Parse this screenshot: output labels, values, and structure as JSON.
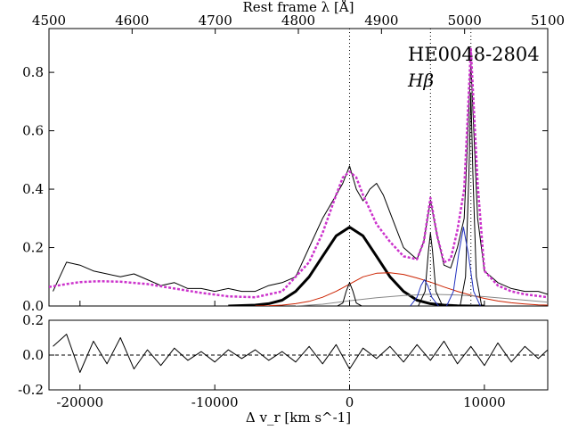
{
  "chart_data": [
    {
      "panel": "spectrum",
      "type": "line",
      "title_text": "HE0048-2804",
      "line_label": "Hβ",
      "top_axis_label": "Rest frame λ [Å]",
      "top_axis_ticks": [
        "4500",
        "4600",
        "4700",
        "4800",
        "4900",
        "5000",
        "5100"
      ],
      "x_range_kms": [
        -22300,
        14700
      ],
      "y_range": [
        0.0,
        0.95
      ],
      "y_ticks": [
        "0.0",
        "0.2",
        "0.4",
        "0.6",
        "0.8"
      ],
      "bottom_ticks_values": [
        -20000,
        -10000,
        0,
        10000
      ],
      "vertical_markers_kms": [
        0,
        6000,
        9000
      ],
      "series": [
        {
          "name": "observed spectrum",
          "color": "#000000",
          "x": [
            -22000,
            -21000,
            -20000,
            -19000,
            -18000,
            -17000,
            -16000,
            -15000,
            -14000,
            -13000,
            -12000,
            -11000,
            -10000,
            -9000,
            -8000,
            -7000,
            -6000,
            -5000,
            -4000,
            -3000,
            -2000,
            -1500,
            -1000,
            -500,
            0,
            500,
            1000,
            1500,
            2000,
            2500,
            3000,
            3500,
            4000,
            4500,
            5000,
            5500,
            6000,
            6500,
            7000,
            7500,
            8000,
            8500,
            9000,
            9500,
            10000,
            11000,
            12000,
            13000,
            14000,
            14700
          ],
          "y": [
            0.05,
            0.15,
            0.14,
            0.12,
            0.11,
            0.1,
            0.11,
            0.09,
            0.07,
            0.08,
            0.06,
            0.06,
            0.05,
            0.06,
            0.05,
            0.05,
            0.07,
            0.08,
            0.1,
            0.2,
            0.3,
            0.34,
            0.38,
            0.42,
            0.48,
            0.4,
            0.36,
            0.4,
            0.42,
            0.38,
            0.32,
            0.26,
            0.2,
            0.18,
            0.16,
            0.22,
            0.36,
            0.24,
            0.14,
            0.13,
            0.2,
            0.3,
            0.83,
            0.3,
            0.12,
            0.08,
            0.06,
            0.05,
            0.05,
            0.04
          ]
        },
        {
          "name": "total model",
          "color": "#cc33cc",
          "x": [
            -22300,
            -21000,
            -20000,
            -18500,
            -17000,
            -15000,
            -13000,
            -11000,
            -9000,
            -7000,
            -5000,
            -3000,
            -2000,
            -1000,
            -500,
            0,
            500,
            1000,
            2000,
            3000,
            4000,
            5000,
            5500,
            6000,
            6500,
            7000,
            7500,
            8000,
            8500,
            9000,
            9500,
            10000,
            11000,
            12000,
            13000,
            14700
          ],
          "y": [
            0.065,
            0.075,
            0.082,
            0.085,
            0.083,
            0.075,
            0.06,
            0.045,
            0.033,
            0.03,
            0.05,
            0.15,
            0.25,
            0.38,
            0.44,
            0.46,
            0.44,
            0.38,
            0.28,
            0.22,
            0.17,
            0.16,
            0.22,
            0.37,
            0.24,
            0.15,
            0.16,
            0.26,
            0.4,
            0.88,
            0.42,
            0.12,
            0.07,
            0.05,
            0.04,
            0.03
          ]
        },
        {
          "name": "broad component",
          "color": "#000000",
          "x": [
            -9000,
            -7000,
            -6000,
            -5000,
            -4000,
            -3000,
            -2000,
            -1000,
            0,
            1000,
            2000,
            3000,
            4000,
            5000,
            6000,
            7000,
            8000,
            9000,
            10000
          ],
          "y": [
            0.0,
            0.003,
            0.008,
            0.02,
            0.05,
            0.1,
            0.17,
            0.24,
            0.27,
            0.24,
            0.17,
            0.1,
            0.05,
            0.02,
            0.008,
            0.003,
            0.001,
            0.0,
            0.0
          ]
        },
        {
          "name": "very broad component",
          "color": "#cc2200",
          "x": [
            -7000,
            -6000,
            -5000,
            -4000,
            -3000,
            -2000,
            -1000,
            0,
            1000,
            2000,
            3000,
            4000,
            5000,
            6000,
            7000,
            8000,
            9000,
            10000,
            11000,
            12000,
            13000,
            14000,
            14700
          ],
          "y": [
            0.0,
            0.001,
            0.003,
            0.008,
            0.016,
            0.03,
            0.05,
            0.075,
            0.1,
            0.112,
            0.114,
            0.108,
            0.096,
            0.082,
            0.065,
            0.05,
            0.037,
            0.026,
            0.017,
            0.011,
            0.007,
            0.004,
            0.003
          ]
        },
        {
          "name": "FeII / continuum",
          "color": "#888888",
          "x": [
            -4000,
            -2000,
            0,
            2000,
            4000,
            6000,
            8000,
            10000,
            12000,
            14000,
            14700
          ],
          "y": [
            0.0,
            0.006,
            0.018,
            0.028,
            0.036,
            0.04,
            0.038,
            0.032,
            0.024,
            0.016,
            0.013
          ]
        },
        {
          "name": "narrow Hβ",
          "color": "#000000",
          "x": [
            -900,
            -500,
            -250,
            0,
            250,
            500,
            900
          ],
          "y": [
            0.0,
            0.01,
            0.05,
            0.08,
            0.05,
            0.01,
            0.0
          ]
        },
        {
          "name": "[OIII]4959 narrow",
          "color": "#000000",
          "x": [
            5100,
            5600,
            5850,
            6000,
            6150,
            6400,
            6900
          ],
          "y": [
            0.0,
            0.05,
            0.19,
            0.25,
            0.19,
            0.05,
            0.0
          ]
        },
        {
          "name": "[OIII]4959 blue wing",
          "color": "#1f2fbf",
          "x": [
            4500,
            5000,
            5300,
            5550,
            5800,
            6100,
            6600
          ],
          "y": [
            0.0,
            0.03,
            0.07,
            0.09,
            0.07,
            0.03,
            0.0
          ]
        },
        {
          "name": "[OIII]5007 narrow",
          "color": "#000000",
          "x": [
            8200,
            8600,
            8850,
            9000,
            9150,
            9400,
            9800
          ],
          "y": [
            0.0,
            0.1,
            0.45,
            0.73,
            0.45,
            0.1,
            0.0
          ]
        },
        {
          "name": "[OIII]5007 blue wing",
          "color": "#1f2fbf",
          "x": [
            7200,
            7700,
            8100,
            8450,
            8800,
            9200,
            9700
          ],
          "y": [
            0.0,
            0.05,
            0.18,
            0.27,
            0.18,
            0.05,
            0.0
          ]
        }
      ]
    },
    {
      "panel": "residuals",
      "type": "line",
      "xlabel": "Δ v_r [km s^-1]",
      "x_range_kms": [
        -22300,
        14700
      ],
      "y_range": [
        -0.2,
        0.2
      ],
      "y_ticks": [
        "0.2",
        "0.0",
        "-0.2"
      ],
      "x_ticks": [
        "-20000",
        "-10000",
        "0",
        "10000"
      ],
      "zero_line": true,
      "series": [
        {
          "name": "residuals",
          "color": "#000000",
          "x": [
            -22000,
            -21000,
            -20000,
            -19000,
            -18000,
            -17000,
            -16000,
            -15000,
            -14000,
            -13000,
            -12000,
            -11000,
            -10000,
            -9000,
            -8000,
            -7000,
            -6000,
            -5000,
            -4000,
            -3000,
            -2000,
            -1000,
            0,
            1000,
            2000,
            3000,
            4000,
            5000,
            6000,
            7000,
            8000,
            9000,
            10000,
            11000,
            12000,
            13000,
            14000,
            14700
          ],
          "y": [
            0.05,
            0.12,
            -0.1,
            0.08,
            -0.05,
            0.1,
            -0.08,
            0.03,
            -0.06,
            0.04,
            -0.03,
            0.02,
            -0.04,
            0.03,
            -0.02,
            0.03,
            -0.03,
            0.02,
            -0.04,
            0.05,
            -0.05,
            0.06,
            -0.08,
            0.04,
            -0.02,
            0.05,
            -0.04,
            0.06,
            -0.03,
            0.08,
            -0.05,
            0.05,
            -0.06,
            0.07,
            -0.04,
            0.05,
            -0.02,
            0.03
          ]
        }
      ]
    }
  ]
}
